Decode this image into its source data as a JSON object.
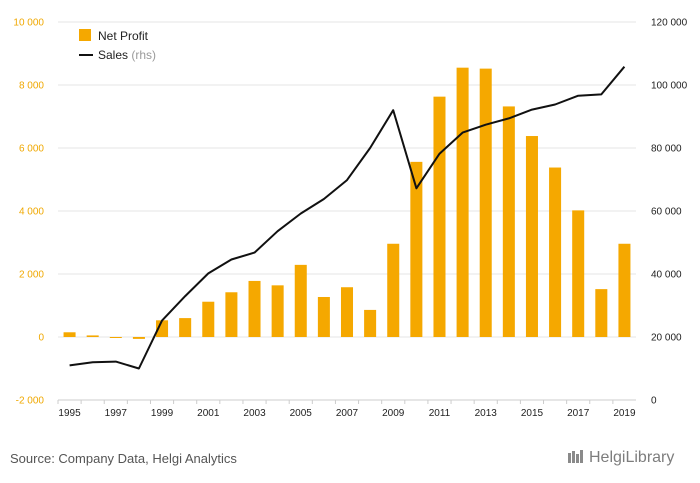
{
  "chart_data": {
    "type": "bar",
    "categories": [
      "1995",
      "1996",
      "1997",
      "1998",
      "1999",
      "2000",
      "2001",
      "2002",
      "2003",
      "2004",
      "2005",
      "2006",
      "2007",
      "2008",
      "2009",
      "2010",
      "2011",
      "2012",
      "2013",
      "2014",
      "2015",
      "2016",
      "2017",
      "2018",
      "2019"
    ],
    "x_tick_labels": [
      "1995",
      "1997",
      "1999",
      "2001",
      "2003",
      "2005",
      "2007",
      "2009",
      "2011",
      "2013",
      "2015",
      "2017",
      "2019"
    ],
    "series": [
      {
        "name": "Net Profit",
        "type": "bar",
        "axis": "left",
        "color": "#f5a800",
        "values": [
          150,
          50,
          -30,
          -60,
          530,
          600,
          1120,
          1420,
          1780,
          1640,
          2290,
          1270,
          1580,
          860,
          2960,
          5560,
          7630,
          8550,
          8520,
          7320,
          6380,
          5380,
          4020,
          1520,
          2960
        ]
      },
      {
        "name": "Sales",
        "name_suffix": "(rhs)",
        "type": "line",
        "axis": "right",
        "color": "#111111",
        "values": [
          11000,
          12000,
          12200,
          10000,
          25200,
          33000,
          40200,
          44600,
          46800,
          53600,
          59200,
          63800,
          69800,
          80000,
          92000,
          67200,
          78200,
          84900,
          87400,
          89400,
          92200,
          93800,
          96600,
          97000,
          105800
        ]
      }
    ],
    "y_left": {
      "min": -2000,
      "max": 10000,
      "ticks": [
        "-2 000",
        "0",
        "2 000",
        "4 000",
        "6 000",
        "8 000",
        "10 000"
      ]
    },
    "y_right": {
      "min": 0,
      "max": 120000,
      "ticks": [
        "0",
        "20 000",
        "40 000",
        "60 000",
        "80 000",
        "100 000",
        "120 000"
      ]
    },
    "grid": true,
    "legend": "top-left",
    "title": "",
    "xlabel": "",
    "ylabel": ""
  },
  "footer": {
    "source": "Source: Company Data, Helgi Analytics",
    "brand": "HelgiLibrary"
  }
}
